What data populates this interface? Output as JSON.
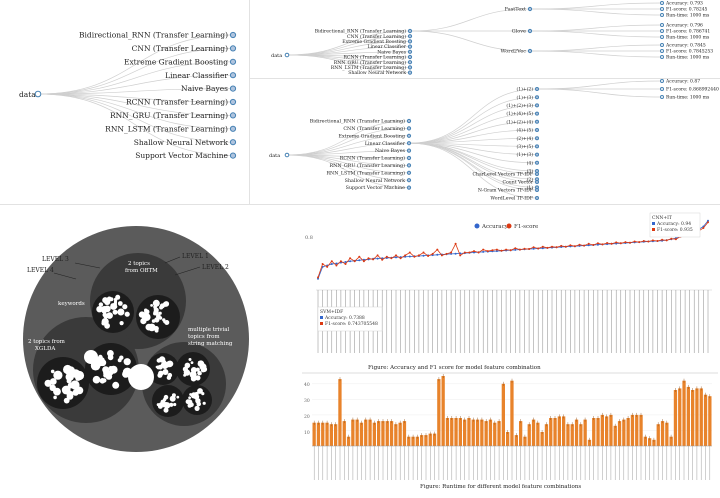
{
  "tree1": {
    "root": "data",
    "children": [
      "Bidirectional_RNN (Transfer Learning)",
      "CNN (Transfer Learning)",
      "Extreme Gradient Boosting",
      "Linear Classifier",
      "Naive Bayes",
      "RCNN (Transfer Learning)",
      "RNN_GRU (Transfer Learning)",
      "RNN_LSTM (Transfer Learning)",
      "Shallow Neural Network",
      "Support Vector Machine"
    ]
  },
  "tree2": {
    "root": "data",
    "children": [
      "Bidirectional_RNN (Transfer Learning)",
      "CNN (Transfer Learning)",
      "Extreme Gradient Boosting",
      "Linear Classifier",
      "Naive Bayes",
      "RCNN (Transfer Learning)",
      "RNN_GRU (Transfer Learning)",
      "RNN_LSTM (Transfer Learning)",
      "Shallow Neural Network"
    ],
    "features": [
      "FastText",
      "Glove",
      "Word2Vec"
    ],
    "metrics": [
      [
        "Accuracy: 0.793",
        "F1-score: 0.78245",
        "Run-time: 1000 ms"
      ],
      [
        "Accuracy: 0.796",
        "F1-score: 0.786741",
        "Run-time: 1000 ms"
      ],
      [
        "Accuracy: 0.7845",
        "F1-score: 0.7845253",
        "Run-time: 1000 ms"
      ]
    ]
  },
  "tree3": {
    "root": "data",
    "children": [
      "Bidirectional_RNN (Transfer Learning)",
      "CNN (Transfer Learning)",
      "Extreme Gradient Boosting",
      "Linear Classifier",
      "Naive Bayes",
      "RCNN (Transfer Learning)",
      "RNN_GRU (Transfer Learning)",
      "RNN_LSTM (Transfer Learning)",
      "Shallow Neural Network",
      "Support Vector Machine"
    ],
    "steps": [
      "(1)+(2)",
      "(1)+(3)",
      "(1)+(2)+(3)",
      "(1)+(4)+(5)",
      "(1)+(2)+(4)",
      "(4)+(5)",
      "(2)+(4)",
      "(3)+(5)",
      "(1)+(3)",
      "(4)",
      "(3)",
      "(2)",
      "(1)"
    ],
    "features": [
      "CharLevel Vectors TF-IDF",
      "Count Vector",
      "N-Gram Vectors TF-IDF",
      "WordLevel TF-IDF"
    ],
    "metrics": [
      "Accuracy: 0.87",
      "F1-score: 0.868992440",
      "Run-time: 1000 ms"
    ]
  },
  "bubble": {
    "labels": {
      "level1": "LEVEL 1",
      "level2": "LEVEL 2",
      "level3": "LEVEL 3",
      "level4": "LEVEL 4",
      "keywords": "keywords",
      "obtm_a": "2 topics",
      "obtm_b": "from OBTM",
      "xgbda_a": "2 topics from",
      "xgbda_b": "XGLDA",
      "trivial_a": "multiple trivial",
      "trivial_b": "topics from",
      "trivial_c": "string matching"
    },
    "colors": {
      "outer": "#5b5b5b",
      "mid": "#3a3a3a",
      "inner": "#1c1c1c",
      "dot": "#ffffff"
    }
  },
  "line_chart": {
    "caption": "Figure: Accuracy and F1 score for model feature combination",
    "legend": [
      "Accuracy",
      "F1-score"
    ],
    "tooltip_top": [
      "CNN+IT",
      "Accuracy: 0.94",
      "F1-score: 0.935"
    ],
    "tooltip_low": [
      "SVM+IDF",
      "Accuracy: 0.7388",
      "F1-score: 0.743705548"
    ],
    "ytick": "0.8",
    "colors": {
      "acc": "#3366cc",
      "f1": "#dc3912"
    }
  },
  "bar_chart": {
    "caption": "Figure: Runtime for different model feature combinations",
    "yticks": [
      "40",
      "30",
      "20",
      "10"
    ],
    "color": "#e8832b"
  },
  "chart_data": [
    {
      "type": "line",
      "title": "",
      "xlabel": "",
      "ylabel": "",
      "ylim": [
        0.7,
        0.96
      ],
      "series": [
        {
          "name": "Accuracy",
          "values": [
            0.7388,
            0.78,
            0.785,
            0.79,
            0.792,
            0.795,
            0.797,
            0.8,
            0.801,
            0.803,
            0.805,
            0.806,
            0.808,
            0.809,
            0.81,
            0.811,
            0.812,
            0.813,
            0.814,
            0.815,
            0.816,
            0.817,
            0.818,
            0.819,
            0.82,
            0.821,
            0.822,
            0.823,
            0.824,
            0.825,
            0.826,
            0.827,
            0.828,
            0.829,
            0.83,
            0.831,
            0.832,
            0.833,
            0.834,
            0.835,
            0.836,
            0.837,
            0.838,
            0.839,
            0.84,
            0.841,
            0.842,
            0.843,
            0.844,
            0.845,
            0.846,
            0.847,
            0.848,
            0.849,
            0.85,
            0.851,
            0.852,
            0.853,
            0.854,
            0.855,
            0.856,
            0.857,
            0.858,
            0.859,
            0.86,
            0.861,
            0.862,
            0.863,
            0.864,
            0.865,
            0.866,
            0.867,
            0.868,
            0.869,
            0.87,
            0.871,
            0.873,
            0.876,
            0.88,
            0.885,
            0.89,
            0.895,
            0.9,
            0.91,
            0.92,
            0.94
          ]
        },
        {
          "name": "F1-score",
          "values": [
            0.7437,
            0.79,
            0.78,
            0.8,
            0.785,
            0.8,
            0.79,
            0.81,
            0.8,
            0.815,
            0.8,
            0.81,
            0.806,
            0.82,
            0.805,
            0.815,
            0.81,
            0.82,
            0.81,
            0.82,
            0.83,
            0.815,
            0.82,
            0.83,
            0.818,
            0.825,
            0.84,
            0.82,
            0.825,
            0.83,
            0.86,
            0.82,
            0.83,
            0.83,
            0.835,
            0.83,
            0.84,
            0.835,
            0.838,
            0.84,
            0.836,
            0.84,
            0.838,
            0.845,
            0.84,
            0.843,
            0.842,
            0.848,
            0.844,
            0.85,
            0.846,
            0.85,
            0.848,
            0.853,
            0.85,
            0.855,
            0.852,
            0.857,
            0.854,
            0.86,
            0.856,
            0.862,
            0.858,
            0.863,
            0.86,
            0.865,
            0.862,
            0.866,
            0.864,
            0.868,
            0.866,
            0.87,
            0.868,
            0.872,
            0.87,
            0.874,
            0.872,
            0.878,
            0.876,
            0.885,
            0.888,
            0.895,
            0.89,
            0.905,
            0.915,
            0.935
          ]
        }
      ]
    },
    {
      "type": "bar",
      "title": "",
      "ylim": [
        0,
        45
      ],
      "values": [
        15,
        15,
        15,
        15,
        14,
        14,
        43,
        16,
        6,
        17,
        17,
        15,
        17,
        17,
        15,
        16,
        16,
        16,
        16,
        14,
        15,
        16,
        6,
        6,
        6,
        7,
        7,
        8,
        8,
        43,
        45,
        18,
        18,
        18,
        18,
        17,
        18,
        17,
        17,
        17,
        16,
        17,
        15,
        16,
        40,
        9,
        42,
        7,
        16,
        6,
        14,
        17,
        15,
        9,
        14,
        18,
        18,
        19,
        19,
        14,
        14,
        17,
        14,
        17,
        4,
        18,
        18,
        20,
        19,
        20,
        13,
        16,
        17,
        18,
        20,
        20,
        20,
        6,
        5,
        4,
        14,
        16,
        15,
        6,
        36,
        37,
        42,
        38,
        36,
        37,
        37,
        33,
        32
      ]
    }
  ]
}
